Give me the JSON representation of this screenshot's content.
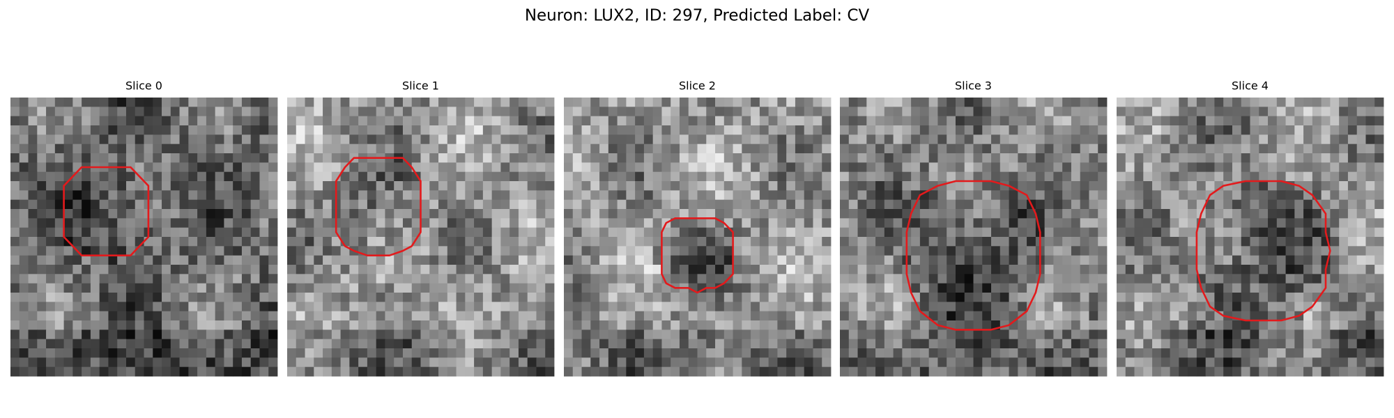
{
  "header": {
    "title": "Neuron: LUX2, ID: 297, Predicted Label: CV"
  },
  "panels": [
    {
      "title": "Slice 0"
    },
    {
      "title": "Slice 1"
    },
    {
      "title": "Slice 2"
    },
    {
      "title": "Slice 3"
    },
    {
      "title": "Slice 4"
    }
  ]
}
